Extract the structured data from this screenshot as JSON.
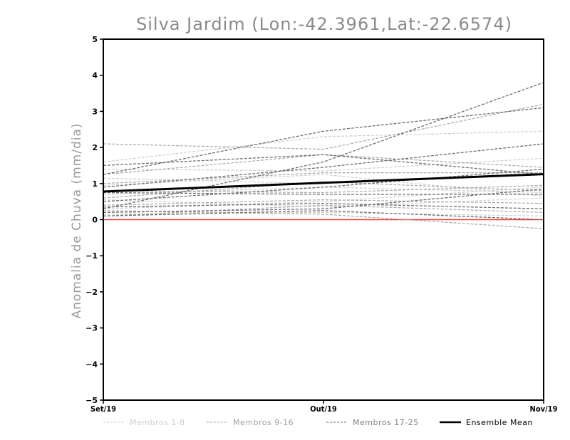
{
  "chart_data": {
    "type": "line",
    "title": "Silva Jardim (Lon:-42.3961,Lat:-22.6574)",
    "ylabel": "Anomalia de Chuva (mm/dia)",
    "xlabel": "",
    "categories": [
      "Set/19",
      "Out/19",
      "Nov/19"
    ],
    "ylim": [
      -5,
      5
    ],
    "yticks": [
      -5,
      -4,
      -3,
      -2,
      -1,
      0,
      1,
      2,
      3,
      4,
      5
    ],
    "grid": false,
    "legend_position": "bottom",
    "reference_line": {
      "y": 0,
      "color": "#e8413c"
    },
    "colors": {
      "members_1_8": "#cfcfcf",
      "members_9_16": "#a8a8a8",
      "members_17_25": "#6e6e6e",
      "ensemble_mean": "#000000"
    },
    "legend": [
      {
        "label": "Membros 1-8",
        "group": "members_1_8"
      },
      {
        "label": "Membros 9-16",
        "group": "members_9_16"
      },
      {
        "label": "Membros 17-25",
        "group": "members_17_25"
      },
      {
        "label": "Ensemble Mean",
        "group": "ensemble_mean"
      }
    ],
    "series": [
      {
        "group": "members_1_8",
        "values": [
          1.6,
          2.3,
          2.45
        ]
      },
      {
        "group": "members_1_8",
        "values": [
          1.4,
          1.35,
          1.7
        ]
      },
      {
        "group": "members_1_8",
        "values": [
          1.15,
          1.0,
          1.3
        ]
      },
      {
        "group": "members_1_8",
        "values": [
          0.95,
          1.25,
          0.65
        ]
      },
      {
        "group": "members_1_8",
        "values": [
          0.7,
          0.9,
          0.75
        ]
      },
      {
        "group": "members_1_8",
        "values": [
          0.55,
          0.35,
          0.6
        ]
      },
      {
        "group": "members_1_8",
        "values": [
          0.3,
          0.5,
          0.9
        ]
      },
      {
        "group": "members_1_8",
        "values": [
          0.15,
          0.2,
          0.1
        ]
      },
      {
        "group": "members_9_16",
        "values": [
          2.1,
          1.95,
          3.2
        ]
      },
      {
        "group": "members_9_16",
        "values": [
          1.25,
          1.8,
          1.45
        ]
      },
      {
        "group": "members_9_16",
        "values": [
          1.0,
          1.3,
          1.3
        ]
      },
      {
        "group": "members_9_16",
        "values": [
          0.8,
          0.75,
          0.95
        ]
      },
      {
        "group": "members_9_16",
        "values": [
          0.6,
          1.05,
          0.8
        ]
      },
      {
        "group": "members_9_16",
        "values": [
          0.4,
          0.55,
          0.45
        ]
      },
      {
        "group": "members_9_16",
        "values": [
          0.25,
          0.15,
          -0.25
        ]
      },
      {
        "group": "members_9_16",
        "values": [
          0.1,
          0.4,
          0.2
        ]
      },
      {
        "group": "members_17_25",
        "values": [
          1.25,
          2.45,
          3.1
        ]
      },
      {
        "group": "members_17_25",
        "values": [
          0.3,
          1.6,
          3.8
        ]
      },
      {
        "group": "members_17_25",
        "values": [
          1.5,
          1.8,
          1.25
        ]
      },
      {
        "group": "members_17_25",
        "values": [
          0.9,
          1.45,
          2.1
        ]
      },
      {
        "group": "members_17_25",
        "values": [
          0.75,
          0.7,
          0.7
        ]
      },
      {
        "group": "members_17_25",
        "values": [
          0.5,
          0.9,
          1.4
        ]
      },
      {
        "group": "members_17_25",
        "values": [
          0.35,
          0.45,
          0.3
        ]
      },
      {
        "group": "members_17_25",
        "values": [
          0.2,
          0.3,
          0.85
        ]
      },
      {
        "group": "members_17_25",
        "values": [
          0.1,
          0.25,
          0.0
        ]
      },
      {
        "group": "ensemble_mean",
        "name": "Ensemble Mean",
        "values": [
          0.78,
          1.02,
          1.26
        ]
      }
    ]
  }
}
